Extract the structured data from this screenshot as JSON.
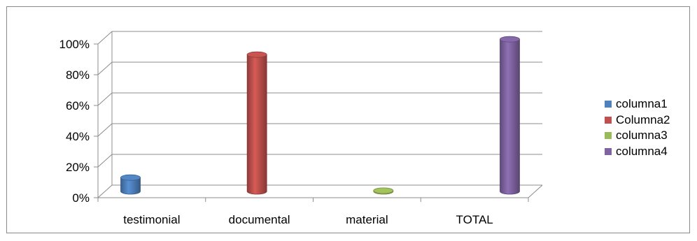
{
  "chart_data": {
    "type": "bar",
    "style": "3d-cylinder",
    "categories": [
      "testimonial",
      "documental",
      "material",
      "TOTAL"
    ],
    "series": [
      {
        "name": "columna1",
        "color": "#4F81BD",
        "values": [
          0.09,
          0,
          0,
          0
        ]
      },
      {
        "name": "Columna2",
        "color": "#C0504D",
        "values": [
          0,
          0.89,
          0,
          0
        ]
      },
      {
        "name": "columna3",
        "color": "#9BBB59",
        "values": [
          0,
          0,
          0.005,
          0
        ]
      },
      {
        "name": "columna4",
        "color": "#8064A2",
        "values": [
          0,
          0,
          0,
          0.99
        ]
      }
    ],
    "y_ticks": [
      "0%",
      "20%",
      "40%",
      "60%",
      "80%",
      "100%"
    ],
    "ylim": [
      0,
      1
    ],
    "grid": true,
    "legend_position": "right",
    "title": "",
    "xlabel": "",
    "ylabel": ""
  }
}
